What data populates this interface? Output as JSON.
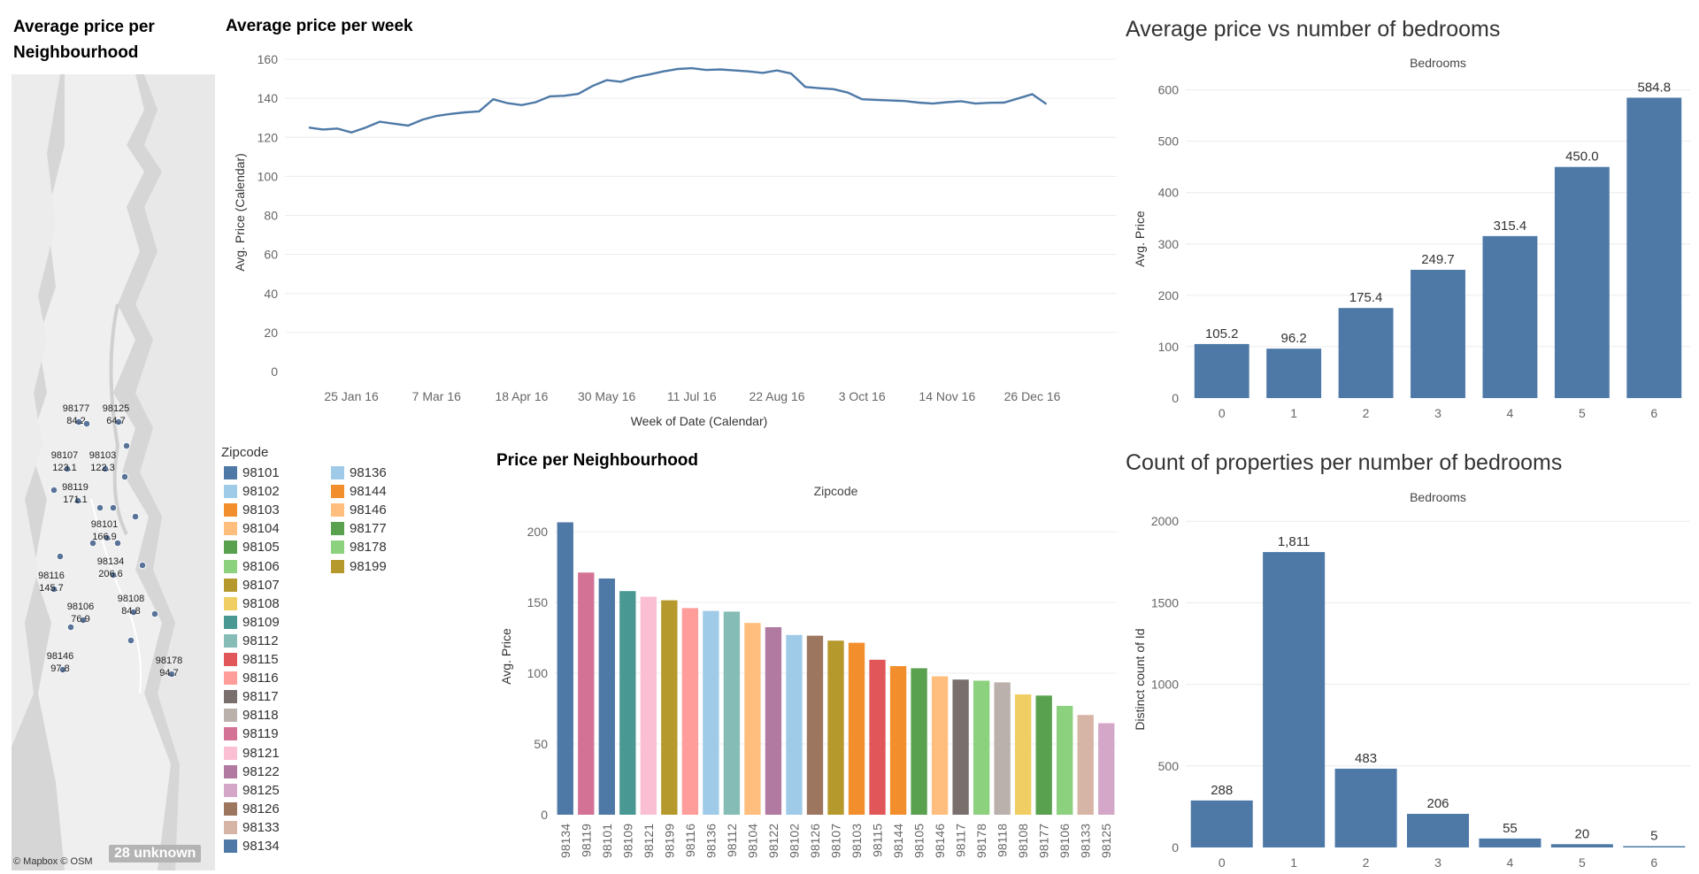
{
  "titles": {
    "map": "Average price per Neighbourhood",
    "week": "Average price per week",
    "bedroom_price": "Average price vs number of bedrooms",
    "neighbourhood": "Price per Neighbourhood",
    "bedroom_count": "Count of properties per number of bedrooms"
  },
  "map": {
    "unknown_badge": "28 unknown",
    "credit": "© Mapbox © OSM",
    "labels": [
      {
        "zip": "98177",
        "value": "84.2"
      },
      {
        "zip": "98125",
        "value": "64.7"
      },
      {
        "zip": "98107",
        "value": "123.1"
      },
      {
        "zip": "98103",
        "value": "122.3"
      },
      {
        "zip": "98119",
        "value": "171.1"
      },
      {
        "zip": "98101",
        "value": "166.9"
      },
      {
        "zip": "98134",
        "value": "206.6"
      },
      {
        "zip": "98116",
        "value": "145.7"
      },
      {
        "zip": "98106",
        "value": "76.9"
      },
      {
        "zip": "98108",
        "value": "84.8"
      },
      {
        "zip": "98146",
        "value": "97.8"
      },
      {
        "zip": "98178",
        "value": "94.7"
      }
    ]
  },
  "legend": {
    "title": "Zipcode",
    "col1": [
      {
        "zip": "98101",
        "color": "#4e79a7"
      },
      {
        "zip": "98102",
        "color": "#a0cbe8"
      },
      {
        "zip": "98103",
        "color": "#f28e2b"
      },
      {
        "zip": "98104",
        "color": "#ffbe7d"
      },
      {
        "zip": "98105",
        "color": "#59a14f"
      },
      {
        "zip": "98106",
        "color": "#8cd17d"
      },
      {
        "zip": "98107",
        "color": "#b6992d"
      },
      {
        "zip": "98108",
        "color": "#f1ce63"
      },
      {
        "zip": "98109",
        "color": "#499894"
      },
      {
        "zip": "98112",
        "color": "#86bcb6"
      },
      {
        "zip": "98115",
        "color": "#e15759"
      },
      {
        "zip": "98116",
        "color": "#ff9d9a"
      },
      {
        "zip": "98117",
        "color": "#79706e"
      },
      {
        "zip": "98118",
        "color": "#bab0ac"
      },
      {
        "zip": "98119",
        "color": "#d37295"
      },
      {
        "zip": "98121",
        "color": "#fabfd2"
      },
      {
        "zip": "98122",
        "color": "#b07aa1"
      },
      {
        "zip": "98125",
        "color": "#d4a6c8"
      },
      {
        "zip": "98126",
        "color": "#9d7660"
      },
      {
        "zip": "98133",
        "color": "#d7b5a6"
      },
      {
        "zip": "98134",
        "color": "#4e79a7"
      }
    ],
    "col2": [
      {
        "zip": "98136",
        "color": "#a0cbe8"
      },
      {
        "zip": "98144",
        "color": "#f28e2b"
      },
      {
        "zip": "98146",
        "color": "#ffbe7d"
      },
      {
        "zip": "98177",
        "color": "#59a14f"
      },
      {
        "zip": "98178",
        "color": "#8cd17d"
      },
      {
        "zip": "98199",
        "color": "#b6992d"
      }
    ]
  },
  "chart_data": [
    {
      "id": "week",
      "type": "line",
      "title": "Average price per week",
      "xlabel": "Week of Date (Calendar)",
      "ylabel": "Avg. Price (Calendar)",
      "ylim": [
        0,
        160
      ],
      "yticks": [
        0,
        20,
        40,
        60,
        80,
        100,
        120,
        140,
        160
      ],
      "xtick_labels": [
        "25 Jan 16",
        "7 Mar 16",
        "18 Apr 16",
        "30 May 16",
        "11 Jul 16",
        "22 Aug 16",
        "3 Oct 16",
        "14 Nov 16",
        "26 Dec 16"
      ],
      "x_start": "2016-01-04",
      "x_step_days": 7,
      "values": [
        125,
        124,
        124.5,
        122.5,
        125,
        128,
        127,
        126,
        129,
        131,
        132,
        132.8,
        133.3,
        139.5,
        137.5,
        136.5,
        138,
        141,
        141.3,
        142.3,
        146.3,
        149.3,
        148.5,
        150.8,
        152.2,
        153.8,
        155,
        155.4,
        154.5,
        154.8,
        154.3,
        153.8,
        153,
        154.3,
        152.7,
        145.8,
        145.2,
        144.7,
        142.9,
        139.5,
        139.2,
        138.9,
        138.6,
        137.8,
        137.3,
        138,
        138.5,
        137.3,
        137.7,
        137.8,
        139.9,
        142.1,
        137
      ]
    },
    {
      "id": "bedroom_price",
      "type": "bar",
      "title": "Average price vs number of bedrooms",
      "header": "Bedrooms",
      "ylabel": "Avg. Price",
      "ylim": [
        0,
        620
      ],
      "yticks": [
        0,
        100,
        200,
        300,
        400,
        500,
        600
      ],
      "categories": [
        "0",
        "1",
        "2",
        "3",
        "4",
        "5",
        "6"
      ],
      "values": [
        105.2,
        96.2,
        175.4,
        249.7,
        315.4,
        450.0,
        584.8
      ],
      "labels": [
        "105.2",
        "96.2",
        "175.4",
        "249.7",
        "315.4",
        "450.0",
        "584.8"
      ],
      "color": "#4e79a7"
    },
    {
      "id": "neighbourhood",
      "type": "bar",
      "title": "Price per Neighbourhood",
      "header": "Zipcode",
      "ylabel": "Avg. Price",
      "ylim": [
        0,
        210
      ],
      "yticks": [
        0,
        50,
        100,
        150,
        200
      ],
      "categories": [
        "98134",
        "98119",
        "98101",
        "98109",
        "98121",
        "98199",
        "98116",
        "98136",
        "98112",
        "98104",
        "98122",
        "98102",
        "98126",
        "98107",
        "98103",
        "98115",
        "98144",
        "98105",
        "98146",
        "98117",
        "98178",
        "98118",
        "98108",
        "98177",
        "98106",
        "98133",
        "98125"
      ],
      "values": [
        206.6,
        171.1,
        166.9,
        158,
        154,
        151.5,
        146,
        144,
        143.5,
        135.5,
        132.5,
        127,
        126.5,
        123,
        121.5,
        109.5,
        105,
        103.5,
        97.8,
        95.5,
        94.7,
        93.5,
        85,
        84.2,
        76.9,
        70.5,
        64.7
      ],
      "colors": [
        "#4e79a7",
        "#d37295",
        "#4e79a7",
        "#499894",
        "#fabfd2",
        "#b6992d",
        "#ff9d9a",
        "#a0cbe8",
        "#86bcb6",
        "#ffbe7d",
        "#b07aa1",
        "#a0cbe8",
        "#9d7660",
        "#b6992d",
        "#f28e2b",
        "#e15759",
        "#f28e2b",
        "#59a14f",
        "#ffbe7d",
        "#79706e",
        "#8cd17d",
        "#bab0ac",
        "#f1ce63",
        "#59a14f",
        "#8cd17d",
        "#d7b5a6",
        "#d4a6c8"
      ]
    },
    {
      "id": "bedroom_count",
      "type": "bar",
      "title": "Count of properties per number of bedrooms",
      "header": "Bedrooms",
      "ylabel": "Distinct count of Id",
      "ylim": [
        0,
        2050
      ],
      "yticks": [
        0,
        500,
        1000,
        1500,
        2000
      ],
      "categories": [
        "0",
        "1",
        "2",
        "3",
        "4",
        "5",
        "6"
      ],
      "values": [
        288,
        1811,
        483,
        206,
        55,
        20,
        5
      ],
      "labels": [
        "288",
        "1,811",
        "483",
        "206",
        "55",
        "20",
        "5"
      ],
      "color": "#4e79a7"
    }
  ]
}
